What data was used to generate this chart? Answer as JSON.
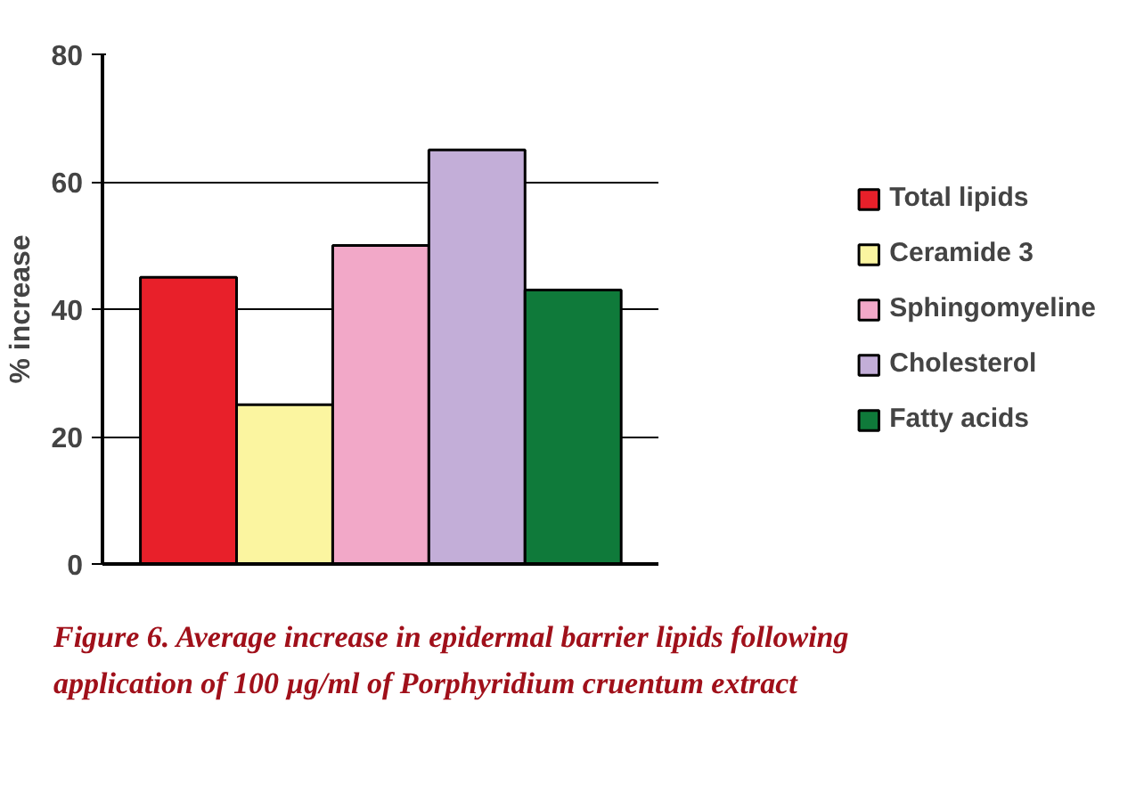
{
  "chart_data": {
    "type": "bar",
    "title": "Figure 6. Average increase in epidermal barrier lipids following application of 100 µg/ml of Porphyridium cruentum extract",
    "ylabel": "% increase",
    "categories": [
      null
    ],
    "series": [
      {
        "name": "Total lipids",
        "color": "#e8202a",
        "values": [
          45
        ]
      },
      {
        "name": "Ceramide 3",
        "color": "#fbf5a0",
        "values": [
          25
        ]
      },
      {
        "name": "Sphingomyeline",
        "color": "#f2a8c8",
        "values": [
          50
        ]
      },
      {
        "name": "Cholesterol",
        "color": "#c3aed8",
        "values": [
          65
        ]
      },
      {
        "name": "Fatty acids",
        "color": "#0f7a3a",
        "values": [
          43
        ]
      }
    ],
    "ylim": [
      0,
      80
    ],
    "yticks": [
      0,
      20,
      40,
      60,
      80
    ],
    "grid": "y",
    "legend": "right",
    "tick_labels": "y"
  }
}
